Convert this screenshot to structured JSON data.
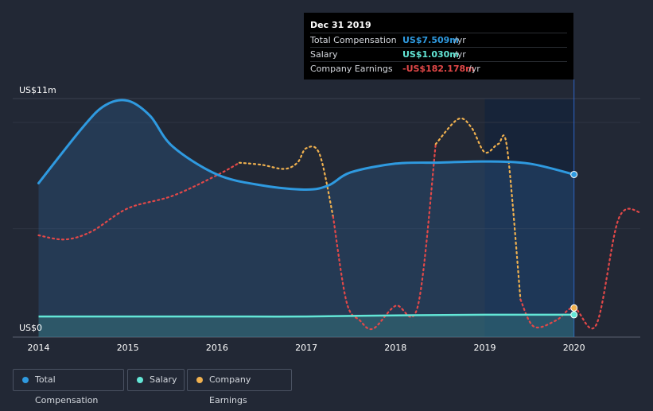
{
  "colors": {
    "background": "#222835",
    "total_compensation": "#2f9ae0",
    "salary": "#63e6d6",
    "company_earnings_positive": "#f0b14f",
    "company_earnings_negative": "#e34848"
  },
  "tooltip": {
    "title": "Dec 31 2019",
    "rows": [
      {
        "label": "Total Compensation",
        "value": "US$7.509m",
        "unit": "/yr"
      },
      {
        "label": "Salary",
        "value": "US$1.030m",
        "unit": "/yr"
      },
      {
        "label": "Company Earnings",
        "value": "-US$182.178m",
        "unit": "/yr"
      }
    ]
  },
  "legend": [
    {
      "label": "Total Compensation",
      "icon": "dot"
    },
    {
      "label": "Salary",
      "icon": "dot"
    },
    {
      "label": "Company Earnings",
      "icon": "dot"
    }
  ],
  "chart_data": {
    "type": "line",
    "y_labels": {
      "top": "US$11m",
      "bottom": "US$0"
    },
    "x_ticks": [
      "2014",
      "2015",
      "2016",
      "2017",
      "2018",
      "2019",
      "2020"
    ],
    "ylim": [
      0,
      11
    ],
    "series": [
      {
        "name": "Total Compensation",
        "points": [
          [
            2014.0,
            7.1
          ],
          [
            2014.5,
            9.7
          ],
          [
            2014.75,
            10.7
          ],
          [
            2015.0,
            10.9
          ],
          [
            2015.25,
            10.2
          ],
          [
            2015.5,
            8.8
          ],
          [
            2016.0,
            7.5
          ],
          [
            2016.5,
            7.0
          ],
          [
            2017.0,
            6.8
          ],
          [
            2017.25,
            7.0
          ],
          [
            2017.5,
            7.6
          ],
          [
            2018.0,
            8.0
          ],
          [
            2018.5,
            8.05
          ],
          [
            2019.0,
            8.1
          ],
          [
            2019.5,
            8.0
          ],
          [
            2020.0,
            7.5
          ]
        ]
      },
      {
        "name": "Salary",
        "points": [
          [
            2014.0,
            0.95
          ],
          [
            2015.0,
            0.95
          ],
          [
            2016.0,
            0.95
          ],
          [
            2017.0,
            0.95
          ],
          [
            2018.0,
            1.0
          ],
          [
            2019.0,
            1.03
          ],
          [
            2020.0,
            1.03
          ]
        ]
      },
      {
        "name": "Company Earnings",
        "scale": "secondary",
        "points": [
          [
            2014.0,
            4.6
          ],
          [
            2014.3,
            4.4
          ],
          [
            2014.6,
            4.8
          ],
          [
            2015.0,
            5.9
          ],
          [
            2015.5,
            6.5
          ],
          [
            2016.0,
            7.5
          ],
          [
            2016.25,
            8.1
          ],
          [
            2016.5,
            8.0
          ],
          [
            2016.75,
            7.8
          ],
          [
            2016.9,
            8.1
          ],
          [
            2017.0,
            8.8
          ],
          [
            2017.15,
            8.5
          ],
          [
            2017.3,
            5.5
          ],
          [
            2017.45,
            1.4
          ],
          [
            2017.6,
            0.5
          ],
          [
            2017.75,
            0.1
          ],
          [
            2018.0,
            1.2
          ],
          [
            2018.25,
            1.2
          ],
          [
            2018.45,
            9.0
          ],
          [
            2018.7,
            10.2
          ],
          [
            2018.85,
            9.8
          ],
          [
            2019.0,
            8.6
          ],
          [
            2019.15,
            9.0
          ],
          [
            2019.25,
            8.8
          ],
          [
            2019.4,
            1.5
          ],
          [
            2019.55,
            0.2
          ],
          [
            2019.8,
            0.5
          ],
          [
            2020.0,
            1.1
          ],
          [
            2020.25,
            0.3
          ],
          [
            2020.5,
            5.4
          ],
          [
            2020.75,
            5.7
          ]
        ]
      }
    ]
  }
}
